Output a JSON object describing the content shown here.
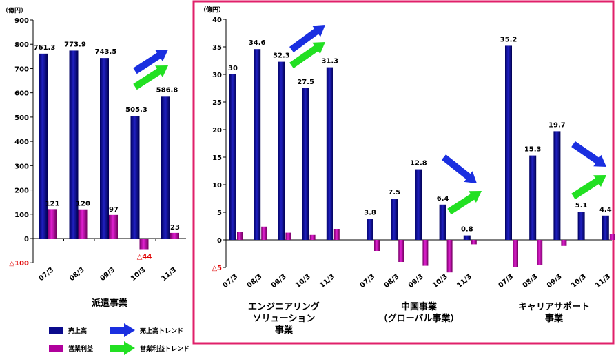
{
  "colors": {
    "sales": "#0a0a8c",
    "profit": "#b0009c",
    "sales_trend": "#1a2fe0",
    "profit_trend": "#22e022",
    "frame": "#e0206a",
    "negative_text": "#e00000"
  },
  "legend": {
    "sales": "売上高",
    "profit": "営業利益",
    "sales_trend": "売上高トレンド",
    "profit_trend": "営業利益トレンド"
  },
  "chart_data": [
    {
      "type": "bar",
      "unit": "（億円）",
      "title": "派遣事業",
      "categories": [
        "07/3",
        "08/3",
        "09/3",
        "10/3",
        "11/3"
      ],
      "series": [
        {
          "name": "売上高",
          "values": [
            761.3,
            773.9,
            743.5,
            505.3,
            586.8
          ],
          "labels": [
            "761.3",
            "773.9",
            "743.5",
            "505.3",
            "586.8"
          ]
        },
        {
          "name": "営業利益",
          "values": [
            121,
            120,
            97,
            -44,
            23
          ],
          "labels": [
            "121",
            "120",
            "97",
            "△44",
            "23"
          ]
        }
      ],
      "yticks": [
        {
          "value": 900,
          "label": "900"
        },
        {
          "value": 800,
          "label": "800"
        },
        {
          "value": 700,
          "label": "700"
        },
        {
          "value": 600,
          "label": "600"
        },
        {
          "value": 500,
          "label": "500"
        },
        {
          "value": 400,
          "label": "400"
        },
        {
          "value": 300,
          "label": "300"
        },
        {
          "value": 200,
          "label": "200"
        },
        {
          "value": 100,
          "label": "100"
        },
        {
          "value": 0,
          "label": "0"
        },
        {
          "value": -100,
          "label": "△100"
        }
      ],
      "ylim": [
        -100,
        900
      ],
      "trends": {
        "sales": "up",
        "profit": "up"
      }
    },
    {
      "type": "bar",
      "unit": "（億円）",
      "ylim": [
        -5,
        40
      ],
      "yticks": [
        {
          "value": 40,
          "label": "40"
        },
        {
          "value": 35,
          "label": "35"
        },
        {
          "value": 30,
          "label": "30"
        },
        {
          "value": 25,
          "label": "25"
        },
        {
          "value": 20,
          "label": "20"
        },
        {
          "value": 15,
          "label": "15"
        },
        {
          "value": 10,
          "label": "10"
        },
        {
          "value": 5,
          "label": "5"
        },
        {
          "value": 0,
          "label": "0"
        },
        {
          "value": -5,
          "label": "△5"
        }
      ],
      "groups": [
        {
          "title_lines": [
            "エンジニアリング",
            "ソリューション",
            "事業"
          ],
          "categories": [
            "07/3",
            "08/3",
            "09/3",
            "10/3",
            "11/3"
          ],
          "series": [
            {
              "name": "売上高",
              "values": [
                30,
                34.6,
                32.3,
                27.5,
                31.3
              ],
              "labels": [
                "30",
                "34.6",
                "32.3",
                "27.5",
                "31.3"
              ]
            },
            {
              "name": "営業利益",
              "values": [
                1.4,
                2.4,
                1.3,
                0.9,
                2.0
              ]
            }
          ],
          "trends": {
            "sales": "up",
            "profit": "up"
          }
        },
        {
          "title_lines": [
            "中国事業",
            "（グローバル事業）"
          ],
          "categories": [
            "07/3",
            "08/3",
            "09/3",
            "10/3",
            "11/3"
          ],
          "series": [
            {
              "name": "売上高",
              "values": [
                3.8,
                7.5,
                12.8,
                6.4,
                0.8
              ],
              "labels": [
                "3.8",
                "7.5",
                "12.8",
                "6.4",
                "0.8"
              ]
            },
            {
              "name": "営業利益",
              "values": [
                -2.0,
                -4.0,
                -4.7,
                -5.9,
                -0.8
              ]
            }
          ],
          "trends": {
            "sales": "down",
            "profit": "up"
          }
        },
        {
          "title_lines": [
            "キャリアサポート",
            "事業"
          ],
          "categories": [
            "07/3",
            "08/3",
            "09/3",
            "10/3",
            "11/3"
          ],
          "series": [
            {
              "name": "売上高",
              "values": [
                35.2,
                15.3,
                19.7,
                5.1,
                4.4
              ],
              "labels": [
                "35.2",
                "15.3",
                "19.7",
                "5.1",
                "4.4"
              ]
            },
            {
              "name": "営業利益",
              "values": [
                -5.0,
                -4.5,
                -1.1,
                0,
                1.1
              ]
            }
          ],
          "trends": {
            "sales": "down",
            "profit": "up"
          }
        }
      ]
    }
  ]
}
